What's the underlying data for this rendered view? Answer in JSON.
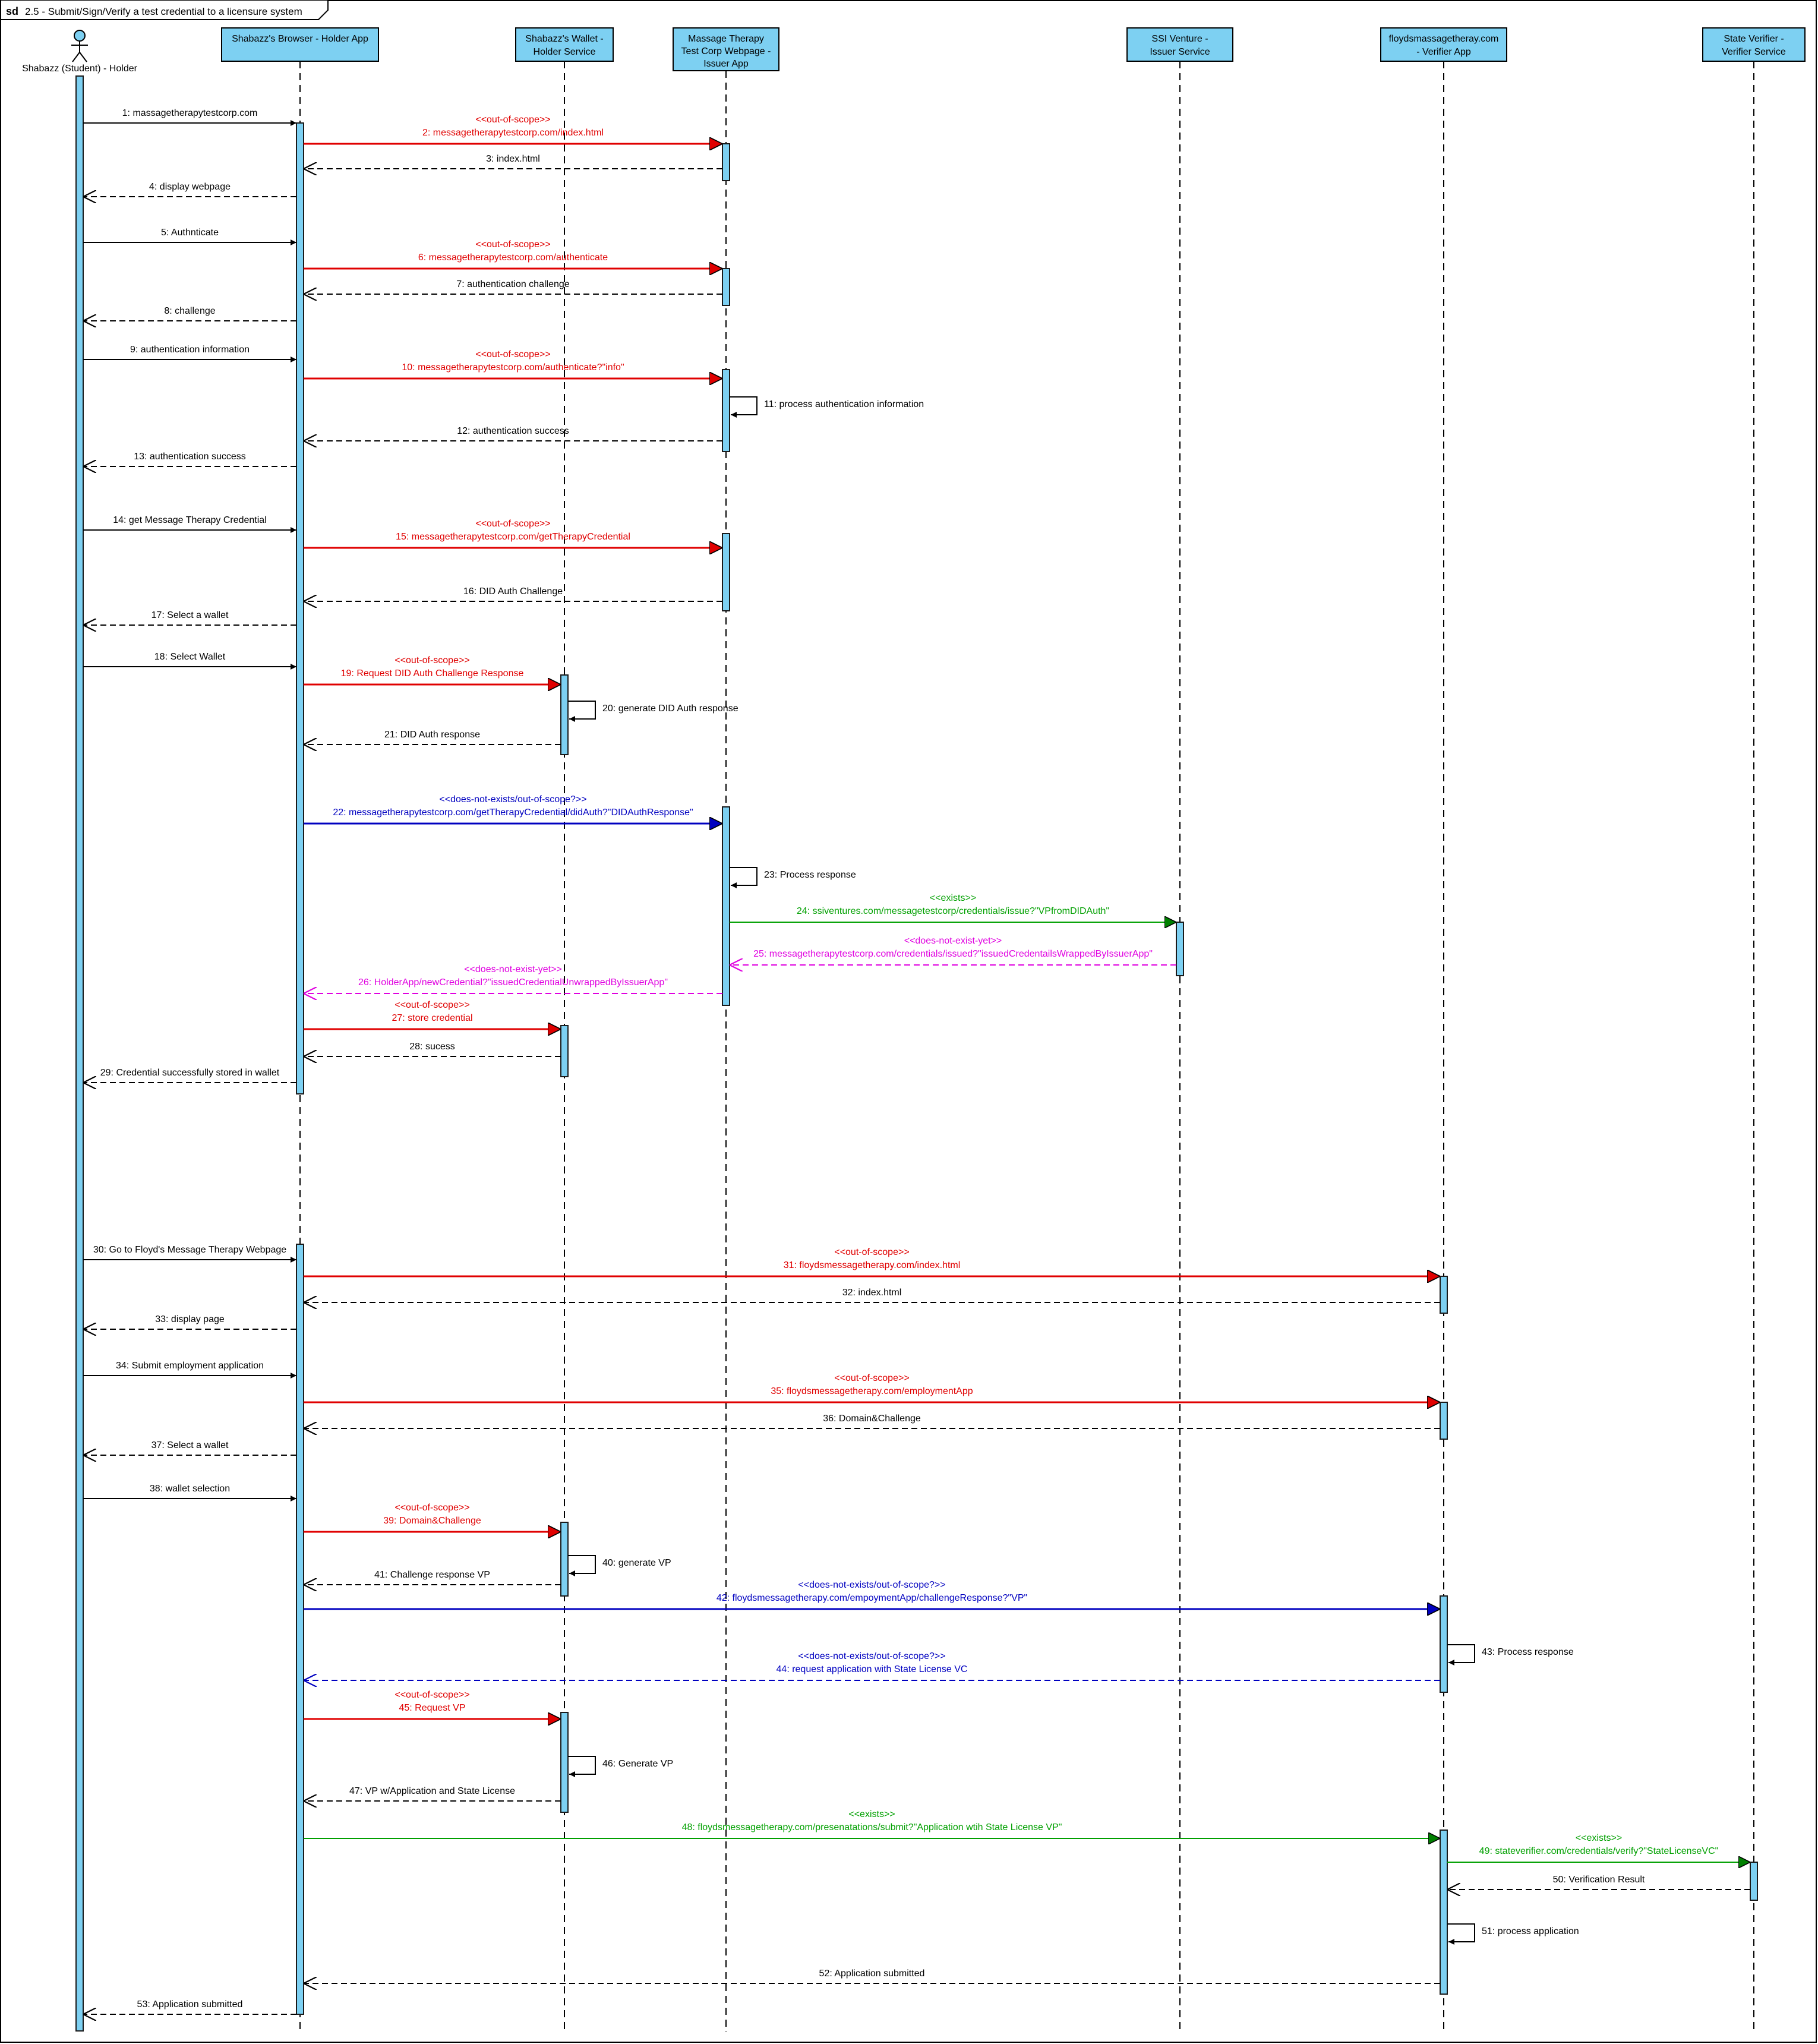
{
  "frame": {
    "keyword": "sd",
    "title": "2.5 -  Submit/Sign/Verify a test credential to a licensure system"
  },
  "colors": {
    "lifeline_fill": "#7dd0f2",
    "lifeline_stroke": "#1a1a1a",
    "black": "#000000",
    "red": "#e00000",
    "blue": "#0000c0",
    "green": "#00a000",
    "magenta": "#e000e0",
    "background": "#ffffff"
  },
  "actor": {
    "name": "Shabazz  (Student) - Holder",
    "icon": "stick-figure-icon"
  },
  "lifelines": [
    {
      "id": "L0",
      "label": [
        "Shabazz  (Student) - Holder"
      ],
      "kind": "actor"
    },
    {
      "id": "L1",
      "label": [
        "Shabazz's Browser - Holder App"
      ],
      "kind": "box"
    },
    {
      "id": "L2",
      "label": [
        "Shabazz's Wallet -",
        "Holder Service"
      ],
      "kind": "box"
    },
    {
      "id": "L3",
      "label": [
        "Massage Therapy",
        "Test Corp Webpage -",
        "Issuer App"
      ],
      "kind": "box"
    },
    {
      "id": "L4",
      "label": [
        "SSI Venture -",
        "Issuer Service"
      ],
      "kind": "box"
    },
    {
      "id": "L5",
      "label": [
        "floydsmassagetheray.com",
        "- Verifier App"
      ],
      "kind": "box"
    },
    {
      "id": "L6",
      "label": [
        "State Verifier -",
        "Verifier Service"
      ],
      "kind": "box"
    }
  ],
  "messages": [
    {
      "n": 1,
      "label": "1: massagetherapytestcorp.com",
      "from": "L0",
      "to": "L1",
      "kind": "sync",
      "color": "black"
    },
    {
      "n": 2,
      "label": "2: messagetherapytestcorp.com/index.html",
      "stereotype": "<<out-of-scope>>",
      "from": "L1",
      "to": "L3",
      "kind": "sync",
      "color": "red"
    },
    {
      "n": 3,
      "label": "3: index.html",
      "from": "L3",
      "to": "L1",
      "kind": "reply",
      "color": "black"
    },
    {
      "n": 4,
      "label": "4: display webpage",
      "from": "L1",
      "to": "L0",
      "kind": "reply",
      "color": "black"
    },
    {
      "n": 5,
      "label": "5: Authnticate",
      "from": "L0",
      "to": "L1",
      "kind": "sync",
      "color": "black"
    },
    {
      "n": 6,
      "label": "6: messagetherapytestcorp.com/authenticate",
      "stereotype": "<<out-of-scope>>",
      "from": "L1",
      "to": "L3",
      "kind": "sync",
      "color": "red"
    },
    {
      "n": 7,
      "label": "7: authentication challenge",
      "from": "L3",
      "to": "L1",
      "kind": "reply",
      "color": "black"
    },
    {
      "n": 8,
      "label": "8: challenge",
      "from": "L1",
      "to": "L0",
      "kind": "reply",
      "color": "black"
    },
    {
      "n": 9,
      "label": "9: authentication information",
      "from": "L0",
      "to": "L1",
      "kind": "sync",
      "color": "black"
    },
    {
      "n": 10,
      "label": "10: messagetherapytestcorp.com/authenticate?\"info\"",
      "stereotype": "<<out-of-scope>>",
      "from": "L1",
      "to": "L3",
      "kind": "sync",
      "color": "red"
    },
    {
      "n": 11,
      "label": "11: process authentication information",
      "from": "L3",
      "to": "L3",
      "kind": "self",
      "color": "black"
    },
    {
      "n": 12,
      "label": "12: authentication success",
      "from": "L3",
      "to": "L1",
      "kind": "reply",
      "color": "black"
    },
    {
      "n": 13,
      "label": "13: authentication success",
      "from": "L1",
      "to": "L0",
      "kind": "reply",
      "color": "black"
    },
    {
      "n": 14,
      "label": "14: get Message Therapy Credential",
      "from": "L0",
      "to": "L1",
      "kind": "sync",
      "color": "black"
    },
    {
      "n": 15,
      "label": "15: messagetherapytestcorp.com/getTherapyCredential",
      "stereotype": "<<out-of-scope>>",
      "from": "L1",
      "to": "L3",
      "kind": "sync",
      "color": "red"
    },
    {
      "n": 16,
      "label": "16: DID Auth Challenge",
      "from": "L3",
      "to": "L1",
      "kind": "reply",
      "color": "black"
    },
    {
      "n": 17,
      "label": "17: Select a wallet",
      "from": "L1",
      "to": "L0",
      "kind": "reply",
      "color": "black"
    },
    {
      "n": 18,
      "label": "18: Select Wallet",
      "from": "L0",
      "to": "L1",
      "kind": "sync",
      "color": "black"
    },
    {
      "n": 19,
      "label": "19: Request DID Auth Challenge Response",
      "stereotype": "<<out-of-scope>>",
      "from": "L1",
      "to": "L2",
      "kind": "sync",
      "color": "red"
    },
    {
      "n": 20,
      "label": "20: generate DID Auth response",
      "from": "L2",
      "to": "L2",
      "kind": "self",
      "color": "black"
    },
    {
      "n": 21,
      "label": "21: DID Auth response",
      "from": "L2",
      "to": "L1",
      "kind": "reply",
      "color": "black"
    },
    {
      "n": 22,
      "label": "22: messagetherapytestcorp.com/getTherapyCredential/didAuth?\"DIDAuthResponse\"",
      "stereotype": "<<does-not-exists/out-of-scope?>>",
      "from": "L1",
      "to": "L3",
      "kind": "sync",
      "color": "blue"
    },
    {
      "n": 23,
      "label": "23: Process response",
      "from": "L3",
      "to": "L3",
      "kind": "self",
      "color": "black"
    },
    {
      "n": 24,
      "label": "24: ssiventures.com/messagetestcorp/credentials/issue?\"VPfromDIDAuth\"",
      "stereotype": "<<exists>>",
      "from": "L3",
      "to": "L4",
      "kind": "sync",
      "color": "green"
    },
    {
      "n": 25,
      "label": "25: messagetherapytestcorp.com/credentials/issued?\"issuedCredentailsWrappedByIssuerApp\"",
      "stereotype": "<<does-not-exist-yet>>",
      "from": "L4",
      "to": "L3",
      "kind": "reply",
      "color": "magenta"
    },
    {
      "n": 26,
      "label": "26: HolderApp/newCredential?\"issuedCredentialUnwrappedByIssuerApp\"",
      "stereotype": "<<does-not-exist-yet>>",
      "from": "L3",
      "to": "L1",
      "kind": "reply",
      "color": "magenta"
    },
    {
      "n": 27,
      "label": "27: store credential",
      "stereotype": "<<out-of-scope>>",
      "from": "L1",
      "to": "L2",
      "kind": "sync",
      "color": "red"
    },
    {
      "n": 28,
      "label": "28: sucess",
      "from": "L2",
      "to": "L1",
      "kind": "reply",
      "color": "black"
    },
    {
      "n": 29,
      "label": "29: Credential successfully stored in wallet",
      "from": "L1",
      "to": "L0",
      "kind": "reply",
      "color": "black"
    },
    {
      "n": 30,
      "label": "30: Go to Floyd's Message Therapy Webpage",
      "from": "L0",
      "to": "L1",
      "kind": "sync",
      "color": "black"
    },
    {
      "n": 31,
      "label": "31: floydsmessagetherapy.com/index.html",
      "stereotype": "<<out-of-scope>>",
      "from": "L1",
      "to": "L5",
      "kind": "sync",
      "color": "red"
    },
    {
      "n": 32,
      "label": "32: index.html",
      "from": "L5",
      "to": "L1",
      "kind": "reply",
      "color": "black"
    },
    {
      "n": 33,
      "label": "33: display page",
      "from": "L1",
      "to": "L0",
      "kind": "reply",
      "color": "black"
    },
    {
      "n": 34,
      "label": "34: Submit employment application",
      "from": "L0",
      "to": "L1",
      "kind": "sync",
      "color": "black"
    },
    {
      "n": 35,
      "label": "35: floydsmessagetherapy.com/employmentApp",
      "stereotype": "<<out-of-scope>>",
      "from": "L1",
      "to": "L5",
      "kind": "sync",
      "color": "red"
    },
    {
      "n": 36,
      "label": "36: Domain&Challenge",
      "from": "L5",
      "to": "L1",
      "kind": "reply",
      "color": "black"
    },
    {
      "n": 37,
      "label": "37: Select a wallet",
      "from": "L1",
      "to": "L0",
      "kind": "reply",
      "color": "black"
    },
    {
      "n": 38,
      "label": "38: wallet selection",
      "from": "L0",
      "to": "L1",
      "kind": "sync",
      "color": "black"
    },
    {
      "n": 39,
      "label": "39: Domain&Challenge",
      "stereotype": "<<out-of-scope>>",
      "from": "L1",
      "to": "L2",
      "kind": "sync",
      "color": "red"
    },
    {
      "n": 40,
      "label": "40: generate VP",
      "from": "L2",
      "to": "L2",
      "kind": "self",
      "color": "black"
    },
    {
      "n": 41,
      "label": "41: Challenge response VP",
      "from": "L2",
      "to": "L1",
      "kind": "reply",
      "color": "black"
    },
    {
      "n": 42,
      "label": "42: floydsmessagetherapy.com/empoymentApp/challengeResponse?\"VP\"",
      "stereotype": "<<does-not-exists/out-of-scope?>>",
      "from": "L1",
      "to": "L5",
      "kind": "sync",
      "color": "blue"
    },
    {
      "n": 43,
      "label": "43: Process response",
      "from": "L5",
      "to": "L5",
      "kind": "self",
      "color": "black"
    },
    {
      "n": 44,
      "label": "44: request application with State License VC",
      "stereotype": "<<does-not-exists/out-of-scope?>>",
      "from": "L5",
      "to": "L1",
      "kind": "reply",
      "color": "blue"
    },
    {
      "n": 45,
      "label": "45: Request VP",
      "stereotype": "<<out-of-scope>>",
      "from": "L1",
      "to": "L2",
      "kind": "sync",
      "color": "red"
    },
    {
      "n": 46,
      "label": "46: Generate VP",
      "from": "L2",
      "to": "L2",
      "kind": "self",
      "color": "black"
    },
    {
      "n": 47,
      "label": "47: VP w/Application and State License",
      "from": "L2",
      "to": "L1",
      "kind": "reply",
      "color": "black"
    },
    {
      "n": 48,
      "label": "48: floydsmessagetherapy.com/presenatations/submit?\"Application wtih State License VP\"",
      "stereotype": "<<exists>>",
      "from": "L1",
      "to": "L5",
      "kind": "sync",
      "color": "green"
    },
    {
      "n": 49,
      "label": "49: stateverifier.com/credentials/verify?\"StateLicenseVC\"",
      "stereotype": "<<exists>>",
      "from": "L5",
      "to": "L6",
      "kind": "sync",
      "color": "green"
    },
    {
      "n": 50,
      "label": "50: Verification Result",
      "from": "L6",
      "to": "L5",
      "kind": "reply",
      "color": "black"
    },
    {
      "n": 51,
      "label": "51: process application",
      "from": "L5",
      "to": "L5",
      "kind": "self",
      "color": "black"
    },
    {
      "n": 52,
      "label": "52: Application submitted",
      "from": "L5",
      "to": "L1",
      "kind": "reply",
      "color": "black"
    },
    {
      "n": 53,
      "label": "53: Application submitted",
      "from": "L1",
      "to": "L0",
      "kind": "reply",
      "color": "black"
    }
  ]
}
